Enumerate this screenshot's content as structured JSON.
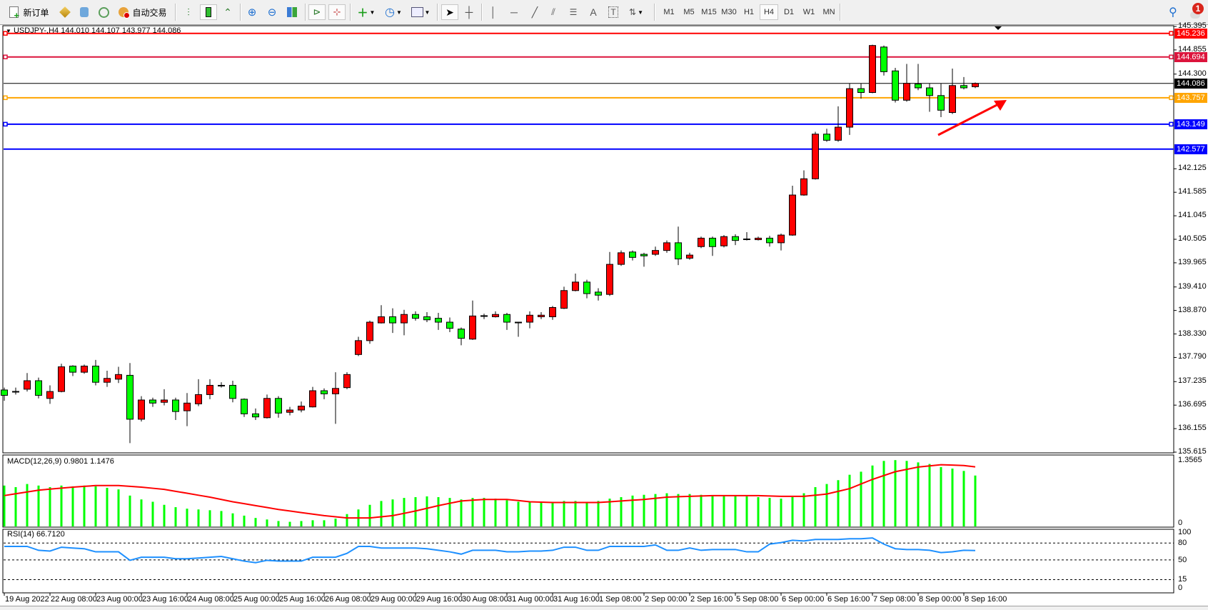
{
  "toolbar": {
    "new_order_label": "新订单",
    "auto_trading_label": "自动交易",
    "timeframes": [
      "M1",
      "M5",
      "M15",
      "M30",
      "H1",
      "H4",
      "D1",
      "W1",
      "MN"
    ],
    "active_timeframe": "H4",
    "notification_count": "1"
  },
  "chart": {
    "title": "USDJPY-,H4  144.010 144.107 143.977 144.086",
    "macd_title": "MACD(12,26,9) 0.9801 1.1476",
    "rsi_title": "RSI(14) 66.7120"
  },
  "chart_data": {
    "type": "candlestick",
    "symbol": "USDJPY-",
    "timeframe": "H4",
    "up_color": "#ff0000",
    "down_color": "#00ff00",
    "price_axis_labels": [
      "145.395",
      "144.855",
      "144.300",
      "142.125",
      "141.585",
      "141.045",
      "140.505",
      "139.965",
      "139.410",
      "138.870",
      "138.330",
      "137.790",
      "137.235",
      "136.695",
      "136.155",
      "135.615"
    ],
    "price_range": [
      135.615,
      145.395
    ],
    "time_axis_labels": [
      "19 Aug 2022",
      "22 Aug 08:00",
      "23 Aug 00:00",
      "23 Aug 16:00",
      "24 Aug 08:00",
      "25 Aug 00:00",
      "25 Aug 16:00",
      "26 Aug 08:00",
      "29 Aug 00:00",
      "29 Aug 16:00",
      "30 Aug 08:00",
      "31 Aug 00:00",
      "31 Aug 16:00",
      "1 Sep 08:00",
      "2 Sep 00:00",
      "2 Sep 16:00",
      "5 Sep 08:00",
      "6 Sep 00:00",
      "6 Sep 16:00",
      "7 Sep 08:00",
      "8 Sep 00:00",
      "8 Sep 16:00"
    ],
    "horizontal_levels": [
      {
        "price": "145.236",
        "color": "#ff0000",
        "marker": true
      },
      {
        "price": "144.694",
        "color": "#dc143c",
        "marker": true
      },
      {
        "price": "144.086",
        "color": "#000000",
        "marker": false
      },
      {
        "price": "143.757",
        "color": "#ffa500",
        "marker": true
      },
      {
        "price": "143.149",
        "color": "#0000ff",
        "marker": true
      },
      {
        "price": "142.577",
        "color": "#0000ff",
        "marker": false
      }
    ],
    "ohlc": [
      [
        137.043,
        137.097,
        136.795,
        136.92
      ],
      [
        137.01,
        137.097,
        136.937,
        137.0
      ],
      [
        137.061,
        137.433,
        137.008,
        137.256
      ],
      [
        137.256,
        137.327,
        136.849,
        136.92
      ],
      [
        136.849,
        137.15,
        136.725,
        137.008
      ],
      [
        137.008,
        137.645,
        136.99,
        137.575
      ],
      [
        137.592,
        137.61,
        137.362,
        137.451
      ],
      [
        137.451,
        137.628,
        137.415,
        137.592
      ],
      [
        137.592,
        137.734,
        137.15,
        137.22
      ],
      [
        137.22,
        137.486,
        137.114,
        137.309
      ],
      [
        137.291,
        137.575,
        137.203,
        137.398
      ],
      [
        137.38,
        137.663,
        135.822,
        136.371
      ],
      [
        136.371,
        136.902,
        136.318,
        136.813
      ],
      [
        136.813,
        136.866,
        136.654,
        136.742
      ],
      [
        136.76,
        137.061,
        136.689,
        136.813
      ],
      [
        136.813,
        136.866,
        136.353,
        136.548
      ],
      [
        136.565,
        136.973,
        136.211,
        136.742
      ],
      [
        136.725,
        137.291,
        136.672,
        136.937
      ],
      [
        136.937,
        137.291,
        136.831,
        137.15
      ],
      [
        137.15,
        137.22,
        137.097,
        137.14
      ],
      [
        137.15,
        137.256,
        136.76,
        136.849
      ],
      [
        136.831,
        136.849,
        136.424,
        136.495
      ],
      [
        136.495,
        136.618,
        136.353,
        136.424
      ],
      [
        136.406,
        136.937,
        136.388,
        136.849
      ],
      [
        136.849,
        136.902,
        136.406,
        136.512
      ],
      [
        136.53,
        136.654,
        136.459,
        136.583
      ],
      [
        136.583,
        136.778,
        136.53,
        136.672
      ],
      [
        136.654,
        137.114,
        136.64,
        137.026
      ],
      [
        137.026,
        137.079,
        136.831,
        136.955
      ],
      [
        136.955,
        137.451,
        136.265,
        137.079
      ],
      [
        137.097,
        137.451,
        137.061,
        137.398
      ],
      [
        137.858,
        138.265,
        137.822,
        138.177
      ],
      [
        138.177,
        138.637,
        138.106,
        138.601
      ],
      [
        138.584,
        138.991,
        138.57,
        138.725
      ],
      [
        138.725,
        138.92,
        138.354,
        138.584
      ],
      [
        138.584,
        138.885,
        138.3,
        138.778
      ],
      [
        138.778,
        138.849,
        138.637,
        138.69
      ],
      [
        138.725,
        138.832,
        138.601,
        138.655
      ],
      [
        138.69,
        138.814,
        138.424,
        138.601
      ],
      [
        138.601,
        138.708,
        138.371,
        138.46
      ],
      [
        138.442,
        138.478,
        138.07,
        138.23
      ],
      [
        138.212,
        139.097,
        138.194,
        138.743
      ],
      [
        138.743,
        138.796,
        138.672,
        138.75
      ],
      [
        138.725,
        138.849,
        138.708,
        138.778
      ],
      [
        138.778,
        138.814,
        138.424,
        138.601
      ],
      [
        138.601,
        138.61,
        138.265,
        138.59
      ],
      [
        138.601,
        138.849,
        138.46,
        138.761
      ],
      [
        138.725,
        138.832,
        138.672,
        138.761
      ],
      [
        138.725,
        138.973,
        138.655,
        138.938
      ],
      [
        138.92,
        139.416,
        138.902,
        139.327
      ],
      [
        139.327,
        139.717,
        139.31,
        139.522
      ],
      [
        139.522,
        139.575,
        139.15,
        139.257
      ],
      [
        139.292,
        139.38,
        139.097,
        139.221
      ],
      [
        139.239,
        140.213,
        139.203,
        139.929
      ],
      [
        139.929,
        140.248,
        139.894,
        140.195
      ],
      [
        140.213,
        140.248,
        140.018,
        140.089
      ],
      [
        140.16,
        140.195,
        139.876,
        140.124
      ],
      [
        140.16,
        140.337,
        140.124,
        140.248
      ],
      [
        140.248,
        140.478,
        140.195,
        140.425
      ],
      [
        140.425,
        140.797,
        139.912,
        140.053
      ],
      [
        140.071,
        140.195,
        140.036,
        140.142
      ],
      [
        140.337,
        140.567,
        140.301,
        140.531
      ],
      [
        140.531,
        140.567,
        140.124,
        140.337
      ],
      [
        140.354,
        140.602,
        140.319,
        140.567
      ],
      [
        140.567,
        140.62,
        140.372,
        140.478
      ],
      [
        140.513,
        140.67,
        140.478,
        140.5
      ],
      [
        140.496,
        140.567,
        140.478,
        140.531
      ],
      [
        140.531,
        140.584,
        140.337,
        140.425
      ],
      [
        140.425,
        140.637,
        140.248,
        140.602
      ],
      [
        140.602,
        141.735,
        140.584,
        141.522
      ],
      [
        141.522,
        142.089,
        141.505,
        141.895
      ],
      [
        141.895,
        142.974,
        141.877,
        142.921
      ],
      [
        142.921,
        143.045,
        142.744,
        142.78
      ],
      [
        142.78,
        143.559,
        142.744,
        143.081
      ],
      [
        143.081,
        144.09,
        142.903,
        143.966
      ],
      [
        143.966,
        144.09,
        143.736,
        143.877
      ],
      [
        143.877,
        144.975,
        143.86,
        144.957
      ],
      [
        144.922,
        144.957,
        144.267,
        144.355
      ],
      [
        144.373,
        144.444,
        143.647,
        143.7
      ],
      [
        143.7,
        144.533,
        143.665,
        144.09
      ],
      [
        144.072,
        144.533,
        143.931,
        143.984
      ],
      [
        143.984,
        144.09,
        143.435,
        143.807
      ],
      [
        143.807,
        144.09,
        143.311,
        143.47
      ],
      [
        143.417,
        144.426,
        143.382,
        144.037
      ],
      [
        144.037,
        144.232,
        143.948,
        143.984
      ],
      [
        144.01,
        144.107,
        143.977,
        144.086
      ]
    ],
    "macd": {
      "params": "12,26,9",
      "axis_labels": [
        "1.3565",
        "0"
      ],
      "histogram_color": "#00ff00",
      "signal_color": "#ff0000",
      "histogram": [
        0.787,
        0.757,
        0.817,
        0.787,
        0.757,
        0.787,
        0.772,
        0.787,
        0.772,
        0.743,
        0.713,
        0.594,
        0.52,
        0.475,
        0.416,
        0.371,
        0.342,
        0.327,
        0.312,
        0.297,
        0.252,
        0.208,
        0.163,
        0.134,
        0.104,
        0.089,
        0.104,
        0.119,
        0.119,
        0.149,
        0.238,
        0.327,
        0.416,
        0.49,
        0.52,
        0.549,
        0.564,
        0.579,
        0.564,
        0.549,
        0.52,
        0.549,
        0.549,
        0.535,
        0.505,
        0.475,
        0.475,
        0.475,
        0.475,
        0.49,
        0.49,
        0.475,
        0.49,
        0.535,
        0.564,
        0.594,
        0.609,
        0.624,
        0.639,
        0.624,
        0.624,
        0.609,
        0.594,
        0.594,
        0.594,
        0.579,
        0.564,
        0.549,
        0.535,
        0.564,
        0.639,
        0.757,
        0.817,
        0.891,
        0.995,
        1.054,
        1.173,
        1.262,
        1.277,
        1.262,
        1.233,
        1.203,
        1.143,
        1.114,
        1.069,
        0.9801
      ],
      "signal": [
        0.594,
        0.629,
        0.663,
        0.698,
        0.718,
        0.738,
        0.757,
        0.772,
        0.787,
        0.787,
        0.787,
        0.772,
        0.757,
        0.735,
        0.713,
        0.676,
        0.639,
        0.601,
        0.564,
        0.519,
        0.475,
        0.438,
        0.401,
        0.364,
        0.327,
        0.297,
        0.267,
        0.237,
        0.208,
        0.186,
        0.163,
        0.163,
        0.163,
        0.185,
        0.208,
        0.252,
        0.297,
        0.349,
        0.401,
        0.446,
        0.49,
        0.505,
        0.52,
        0.52,
        0.52,
        0.498,
        0.475,
        0.468,
        0.46,
        0.46,
        0.46,
        0.46,
        0.46,
        0.475,
        0.49,
        0.505,
        0.52,
        0.542,
        0.564,
        0.572,
        0.579,
        0.587,
        0.594,
        0.594,
        0.594,
        0.594,
        0.594,
        0.587,
        0.579,
        0.579,
        0.579,
        0.601,
        0.624,
        0.676,
        0.728,
        0.817,
        0.906,
        0.98,
        1.054,
        1.099,
        1.143,
        1.166,
        1.188,
        1.181,
        1.173,
        1.1476
      ]
    },
    "rsi": {
      "period": 14,
      "color": "#1e90ff",
      "axis_labels": [
        "100",
        "80",
        "50",
        "15",
        "0"
      ],
      "levels": [
        80,
        50,
        15
      ],
      "values": [
        74.0,
        74.0,
        74.0,
        67.1,
        65.8,
        72.6,
        71.2,
        69.9,
        64.4,
        64.4,
        64.4,
        49.3,
        54.8,
        54.8,
        54.8,
        52.1,
        52.1,
        53.4,
        54.8,
        56.2,
        52.1,
        47.9,
        45.2,
        49.3,
        47.9,
        47.9,
        47.9,
        54.8,
        54.8,
        54.8,
        61.6,
        74.0,
        74.0,
        71.2,
        71.2,
        71.2,
        71.2,
        69.9,
        67.1,
        64.4,
        60.3,
        67.1,
        67.1,
        67.1,
        64.4,
        64.4,
        65.8,
        65.8,
        67.1,
        72.6,
        72.6,
        67.1,
        67.1,
        74.0,
        74.0,
        74.0,
        74.0,
        76.7,
        67.1,
        67.1,
        71.2,
        67.1,
        68.5,
        68.5,
        68.5,
        64.4,
        64.4,
        78.1,
        80.8,
        84.9,
        83.6,
        86.3,
        86.3,
        86.3,
        87.7,
        87.7,
        89.0,
        78.1,
        69.9,
        68.5,
        68.5,
        67.1,
        63.0,
        64.4,
        67.1,
        66.712
      ]
    },
    "annotations": [
      {
        "type": "arrow",
        "color": "#ff0000",
        "direction": "up-right"
      }
    ]
  }
}
